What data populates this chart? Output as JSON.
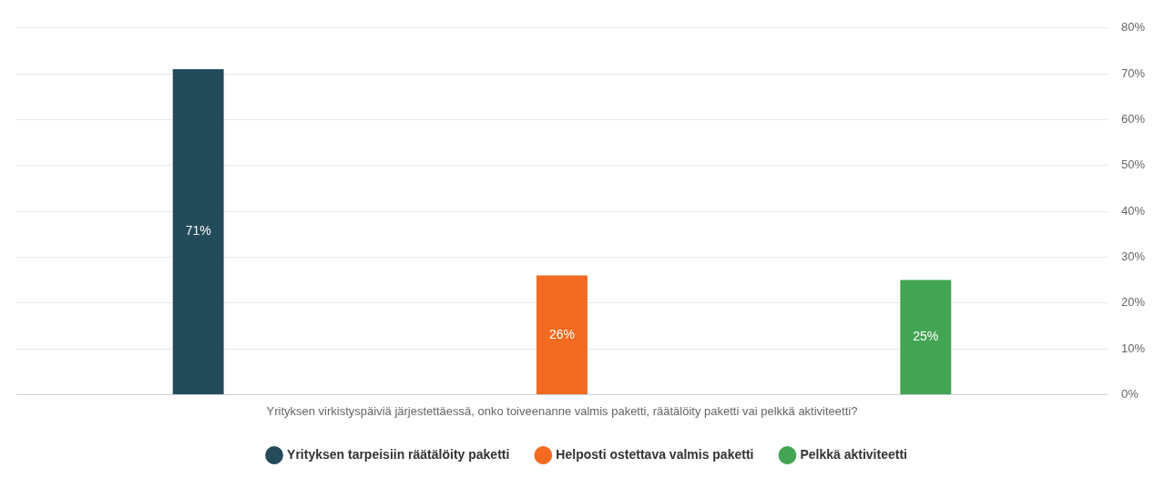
{
  "chart_data": {
    "type": "bar",
    "categories": [
      "Yrityksen virkistyspäiviä järjestettäessä, onko toiveenanne valmis paketti, räätälöity paketti vai pelkkä aktiviteetti?"
    ],
    "series": [
      {
        "name": "Yrityksen tarpeisiin räätälöity paketti",
        "color": "#234b5a",
        "values": [
          71
        ],
        "value_labels": [
          "71%"
        ]
      },
      {
        "name": "Helposti ostettava valmis paketti",
        "color": "#f26b21",
        "values": [
          26
        ],
        "value_labels": [
          "26%"
        ]
      },
      {
        "name": "Pelkkä aktiviteetti",
        "color": "#43a453",
        "values": [
          25
        ],
        "value_labels": [
          "25%"
        ]
      }
    ],
    "ylim": [
      0,
      80
    ],
    "yticks": [
      {
        "value": 0,
        "label": "0%"
      },
      {
        "value": 10,
        "label": "10%"
      },
      {
        "value": 20,
        "label": "20%"
      },
      {
        "value": 30,
        "label": "30%"
      },
      {
        "value": 40,
        "label": "40%"
      },
      {
        "value": 50,
        "label": "50%"
      },
      {
        "value": 60,
        "label": "60%"
      },
      {
        "value": 70,
        "label": "70%"
      },
      {
        "value": 80,
        "label": "80%"
      }
    ],
    "grid": "y",
    "legend": "bottom"
  }
}
